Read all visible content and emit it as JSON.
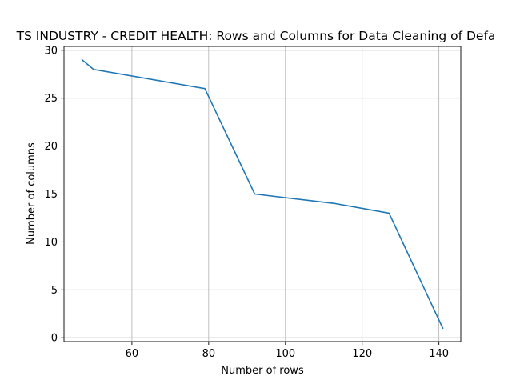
{
  "colors": {
    "series": "#1f77b4",
    "grid": "#b0b0b0",
    "axes": "#000000",
    "background": "#ffffff"
  },
  "chart_data": {
    "type": "line",
    "title": "TS INDUSTRY - CREDIT HEALTH: Rows and Columns for Data Cleaning of Defa",
    "xlabel": "Number of rows",
    "ylabel": "Number of columns",
    "xlim": [
      42.3,
      145.7
    ],
    "ylim": [
      -0.4,
      30.4
    ],
    "xticks": [
      60,
      80,
      100,
      120,
      140
    ],
    "yticks": [
      0,
      5,
      10,
      15,
      20,
      25,
      30
    ],
    "grid": true,
    "legend": "none",
    "series": [
      {
        "x": [
          47,
          50,
          79,
          92,
          113,
          127,
          141
        ],
        "y": [
          29,
          28,
          26,
          15,
          14,
          13,
          1
        ]
      }
    ]
  }
}
